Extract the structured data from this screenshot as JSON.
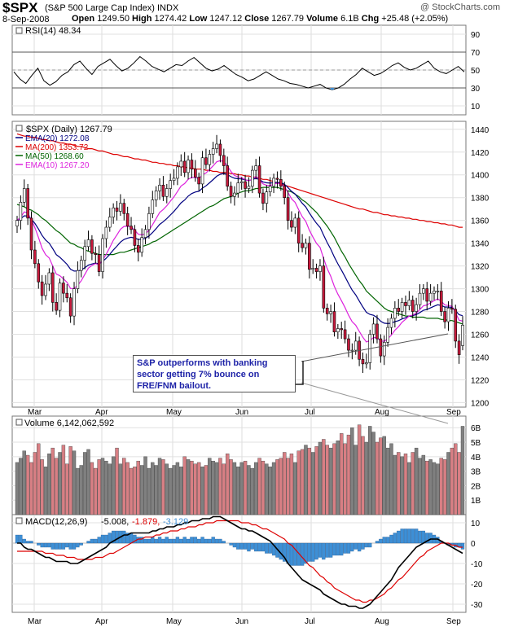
{
  "header": {
    "symbol": "$SPX",
    "company": "(S&P 500 Large Cap Index) INDX",
    "watermark": "@ StockCharts.com",
    "date": "8-Sep-2008",
    "open_label": "Open",
    "open": "1249.50",
    "high_label": "High",
    "high": "1274.42",
    "low_label": "Low",
    "low": "1247.12",
    "close_label": "Close",
    "close": "1267.79",
    "volume_label": "Volume",
    "volume": "6.1B",
    "chg_label": "Chg",
    "chg": "+25.48 (+2.05%)"
  },
  "annotation": {
    "line1": "S&P outperforms with banking",
    "line2": "sector getting 7% bounce on",
    "line3": "FRE/FNM bailout."
  },
  "colors": {
    "up": "#ffffff",
    "down": "#c8193c",
    "ema20": "#000080",
    "ma200": "#dd0000",
    "ma50": "#006400",
    "ema10": "#dd22dd",
    "macd": "#000000",
    "signal": "#dd0000",
    "hist": "#3d8fd6",
    "vol_up": "#808080",
    "vol_down": "#d87f84"
  },
  "chart_data": [
    {
      "type": "line",
      "title": "RSI(14) 48.34",
      "series": [
        {
          "name": "RSI(14)",
          "values": [
            48,
            40,
            35,
            44,
            52,
            38,
            33,
            37,
            44,
            48,
            56,
            60,
            52,
            45,
            54,
            58,
            62,
            55,
            49,
            52,
            58,
            65,
            60,
            54,
            51,
            48,
            52,
            56,
            55,
            60,
            64,
            58,
            52,
            49,
            51,
            55,
            50,
            45,
            42,
            38,
            40,
            44,
            48,
            44,
            40,
            38,
            35,
            34,
            32,
            30,
            32,
            34,
            30,
            28,
            30,
            34,
            40,
            45,
            52,
            48,
            44,
            46,
            50,
            55,
            58,
            53,
            50,
            52,
            56,
            60,
            52,
            48,
            46,
            50,
            54,
            48
          ]
        }
      ],
      "yticks": [
        10,
        30,
        50,
        70,
        90
      ],
      "ylim": [
        0,
        100
      ],
      "reference_lines": [
        30,
        50,
        70
      ]
    },
    {
      "type": "candlestick",
      "title": "$SPX (Daily) 1267.79",
      "x_labels": [
        "Mar",
        "Apr",
        "May",
        "Jun",
        "Jul",
        "Aug",
        "Sep"
      ],
      "yticks": [
        1200,
        1220,
        1240,
        1260,
        1280,
        1300,
        1320,
        1340,
        1360,
        1380,
        1400,
        1420,
        1440
      ],
      "ylim": [
        1196,
        1447
      ],
      "close": [
        1360,
        1376,
        1388,
        1362,
        1334,
        1322,
        1306,
        1294,
        1304,
        1314,
        1288,
        1281,
        1305,
        1296,
        1292,
        1276,
        1300,
        1316,
        1325,
        1337,
        1343,
        1331,
        1330,
        1315,
        1344,
        1354,
        1363,
        1371,
        1368,
        1375,
        1366,
        1355,
        1352,
        1338,
        1332,
        1345,
        1352,
        1366,
        1378,
        1386,
        1391,
        1381,
        1388,
        1395,
        1397,
        1407,
        1412,
        1402,
        1413,
        1405,
        1398,
        1392,
        1415,
        1409,
        1418,
        1423,
        1427,
        1417,
        1408,
        1390,
        1381,
        1384,
        1393,
        1394,
        1388,
        1390,
        1404,
        1408,
        1384,
        1375,
        1385,
        1390,
        1397,
        1396,
        1390,
        1380,
        1360,
        1354,
        1362,
        1340,
        1336,
        1340,
        1317,
        1318,
        1315,
        1320,
        1283,
        1278,
        1280,
        1262,
        1265,
        1264,
        1256,
        1246,
        1246,
        1254,
        1238,
        1234,
        1235,
        1260,
        1269,
        1256,
        1241,
        1253,
        1266,
        1274,
        1283,
        1280,
        1288,
        1285,
        1290,
        1280,
        1286,
        1296,
        1300,
        1289,
        1296,
        1298,
        1298,
        1280,
        1271,
        1283,
        1282,
        1254,
        1242,
        1268
      ],
      "open": [
        1355,
        1360,
        1376,
        1388,
        1362,
        1334,
        1322,
        1306,
        1294,
        1304,
        1314,
        1288,
        1281,
        1305,
        1296,
        1292,
        1276,
        1300,
        1316,
        1325,
        1337,
        1343,
        1331,
        1330,
        1315,
        1344,
        1354,
        1363,
        1371,
        1368,
        1375,
        1366,
        1355,
        1352,
        1338,
        1332,
        1345,
        1352,
        1366,
        1378,
        1386,
        1391,
        1381,
        1388,
        1395,
        1397,
        1407,
        1412,
        1402,
        1413,
        1405,
        1398,
        1392,
        1415,
        1409,
        1418,
        1423,
        1427,
        1417,
        1408,
        1390,
        1381,
        1384,
        1393,
        1394,
        1388,
        1390,
        1404,
        1408,
        1384,
        1375,
        1385,
        1390,
        1397,
        1396,
        1390,
        1380,
        1360,
        1354,
        1362,
        1340,
        1336,
        1340,
        1317,
        1318,
        1315,
        1320,
        1283,
        1278,
        1280,
        1262,
        1265,
        1264,
        1256,
        1246,
        1246,
        1254,
        1238,
        1234,
        1235,
        1260,
        1269,
        1256,
        1241,
        1253,
        1266,
        1274,
        1283,
        1280,
        1288,
        1285,
        1290,
        1280,
        1286,
        1296,
        1300,
        1289,
        1296,
        1298,
        1298,
        1280,
        1271,
        1283,
        1282,
        1254,
        1250
      ],
      "ma200": [
        1436,
        1435,
        1434,
        1434,
        1433,
        1433,
        1432,
        1431,
        1431,
        1430,
        1430,
        1429,
        1428,
        1428,
        1427,
        1427,
        1426,
        1425,
        1425,
        1424,
        1423,
        1423,
        1422,
        1421,
        1421,
        1420,
        1419,
        1418,
        1418,
        1417,
        1416,
        1416,
        1415,
        1414,
        1414,
        1413,
        1413,
        1412,
        1411,
        1411,
        1410,
        1410,
        1409,
        1409,
        1408,
        1408,
        1407,
        1407,
        1406,
        1406,
        1405,
        1405,
        1405,
        1404,
        1404,
        1403,
        1403,
        1402,
        1402,
        1402,
        1401,
        1401,
        1400,
        1400,
        1399,
        1399,
        1398,
        1398,
        1397,
        1396,
        1396,
        1395,
        1394,
        1393,
        1392,
        1391,
        1390,
        1389,
        1388,
        1387,
        1386,
        1385,
        1384,
        1383,
        1382,
        1381,
        1380,
        1379,
        1378,
        1377,
        1376,
        1375,
        1374,
        1373,
        1372,
        1371,
        1370,
        1370,
        1369,
        1368,
        1367,
        1367,
        1366,
        1365,
        1365,
        1364,
        1364,
        1363,
        1363,
        1362,
        1362,
        1361,
        1361,
        1360,
        1360,
        1359,
        1359,
        1358,
        1358,
        1357,
        1357,
        1356,
        1356,
        1355,
        1354,
        1354
      ],
      "ma50": [
        1374,
        1373,
        1372,
        1370,
        1369,
        1367,
        1365,
        1362,
        1360,
        1357,
        1354,
        1351,
        1349,
        1346,
        1343,
        1340,
        1339,
        1337,
        1336,
        1334,
        1333,
        1332,
        1331,
        1330,
        1330,
        1330,
        1330,
        1330,
        1331,
        1332,
        1332,
        1333,
        1334,
        1335,
        1336,
        1337,
        1338,
        1339,
        1341,
        1342,
        1344,
        1346,
        1348,
        1350,
        1352,
        1354,
        1356,
        1358,
        1360,
        1362,
        1364,
        1366,
        1368,
        1370,
        1372,
        1373,
        1375,
        1377,
        1379,
        1380,
        1381,
        1382,
        1384,
        1385,
        1386,
        1386,
        1387,
        1388,
        1388,
        1389,
        1389,
        1389,
        1389,
        1389,
        1388,
        1387,
        1386,
        1385,
        1383,
        1381,
        1378,
        1376,
        1373,
        1370,
        1367,
        1363,
        1359,
        1355,
        1350,
        1345,
        1339,
        1333,
        1328,
        1322,
        1317,
        1312,
        1307,
        1303,
        1298,
        1295,
        1292,
        1289,
        1286,
        1283,
        1281,
        1280,
        1279,
        1278,
        1277,
        1276,
        1276,
        1275,
        1275,
        1275,
        1275,
        1274,
        1274,
        1274,
        1274,
        1273,
        1273,
        1272,
        1272,
        1271,
        1270,
        1269
      ]
    },
    {
      "type": "bar",
      "title": "Volume 6,142,062,592",
      "yticks_labels": [
        "1B",
        "2B",
        "3B",
        "4B",
        "5B",
        "6B"
      ],
      "ylim": [
        0,
        6.8
      ],
      "values": [
        3.6,
        3.9,
        4.4,
        4.1,
        3.6,
        4.3,
        4.9,
        3.8,
        3.3,
        4.2,
        4.6,
        3.9,
        4.3,
        4.8,
        3.5,
        4.7,
        4.4,
        3.2,
        3.4,
        4.3,
        4.5,
        3.6,
        3.2,
        3.8,
        3.9,
        3.7,
        3.5,
        4.0,
        4.6,
        3.5,
        3.9,
        3.6,
        3.2,
        3.3,
        3.7,
        3.4,
        4.0,
        3.2,
        3.6,
        3.4,
        3.9,
        3.8,
        3.5,
        3.2,
        3.4,
        3.6,
        3.3,
        4.0,
        3.8,
        3.7,
        3.5,
        3.6,
        3.3,
        3.4,
        3.9,
        3.7,
        3.6,
        3.9,
        3.5,
        4.2,
        3.8,
        3.6,
        3.3,
        3.6,
        3.7,
        3.4,
        3.2,
        3.6,
        3.9,
        3.7,
        3.5,
        3.3,
        3.6,
        3.8,
        3.9,
        4.3,
        3.9,
        4.2,
        3.6,
        4.4,
        4.5,
        4.8,
        4.6,
        4.3,
        4.7,
        5.0,
        5.2,
        4.8,
        4.6,
        4.9,
        5.1,
        5.6,
        4.9,
        5.5,
        6.0,
        4.8,
        6.2,
        5.4,
        5.0,
        6.1,
        5.7,
        5.0,
        5.3,
        5.4,
        4.6,
        4.9,
        4.1,
        4.3,
        4.0,
        4.2,
        3.6,
        4.3,
        4.6,
        3.9,
        4.1,
        3.7,
        3.8,
        3.6,
        3.5,
        3.9,
        3.8,
        4.3,
        4.6,
        4.9,
        4.3,
        6.1
      ]
    },
    {
      "type": "line",
      "title": "MACD(12,26,9)",
      "legend": [
        "-5.008",
        "-1.879",
        "-3.129"
      ],
      "yticks": [
        10,
        0,
        -10,
        -20,
        -30
      ],
      "ylim": [
        -34,
        14
      ],
      "series": [
        {
          "name": "MACD",
          "values": [
            0,
            0,
            -2,
            -3,
            -3,
            -4,
            -5,
            -6,
            -7,
            -7,
            -8,
            -9,
            -9,
            -9,
            -9,
            -10,
            -10,
            -10,
            -9,
            -8,
            -7,
            -6,
            -5,
            -4,
            -3,
            -2,
            0,
            1,
            2,
            3,
            4,
            4,
            5,
            5,
            5,
            5,
            5,
            5,
            6,
            6,
            7,
            7,
            8,
            8,
            8,
            9,
            9,
            10,
            10,
            11,
            11,
            11,
            12,
            12,
            12,
            13,
            13,
            13,
            12,
            11,
            10,
            9,
            8,
            7,
            7,
            6,
            6,
            5,
            4,
            3,
            2,
            1,
            -1,
            -3,
            -5,
            -7,
            -10,
            -12,
            -14,
            -16,
            -18,
            -19,
            -20,
            -21,
            -22,
            -23,
            -25,
            -26,
            -27,
            -28,
            -29,
            -30,
            -30,
            -31,
            -31,
            -31,
            -32,
            -32,
            -31,
            -30,
            -28,
            -26,
            -24,
            -22,
            -20,
            -18,
            -15,
            -12,
            -10,
            -8,
            -6,
            -4,
            -2,
            -1,
            0,
            1,
            2,
            2,
            2,
            1,
            0,
            -1,
            -2,
            -3,
            -4,
            -5
          ]
        },
        {
          "name": "Signal",
          "values": [
            -4,
            -4,
            -4,
            -4,
            -4,
            -4,
            -4,
            -4,
            -5,
            -5,
            -5,
            -6,
            -6,
            -6,
            -7,
            -7,
            -7,
            -8,
            -8,
            -8,
            -8,
            -8,
            -7,
            -7,
            -7,
            -6,
            -5,
            -5,
            -4,
            -3,
            -2,
            -1,
            0,
            1,
            2,
            2,
            3,
            3,
            3,
            4,
            4,
            5,
            5,
            6,
            6,
            6,
            7,
            7,
            8,
            8,
            8,
            9,
            9,
            10,
            10,
            10,
            11,
            11,
            11,
            11,
            11,
            11,
            11,
            10,
            10,
            10,
            9,
            9,
            8,
            7,
            7,
            6,
            5,
            4,
            3,
            2,
            0,
            -1,
            -3,
            -5,
            -7,
            -9,
            -11,
            -12,
            -14,
            -16,
            -17,
            -19,
            -20,
            -22,
            -23,
            -24,
            -25,
            -26,
            -27,
            -28,
            -28,
            -29,
            -29,
            -28,
            -28,
            -27,
            -26,
            -25,
            -23,
            -22,
            -20,
            -18,
            -17,
            -15,
            -13,
            -11,
            -9,
            -7,
            -6,
            -4,
            -3,
            -2,
            -1,
            0,
            0,
            0,
            -1,
            -1,
            -2,
            -2
          ]
        }
      ],
      "histogram": "MACD minus Signal"
    }
  ]
}
